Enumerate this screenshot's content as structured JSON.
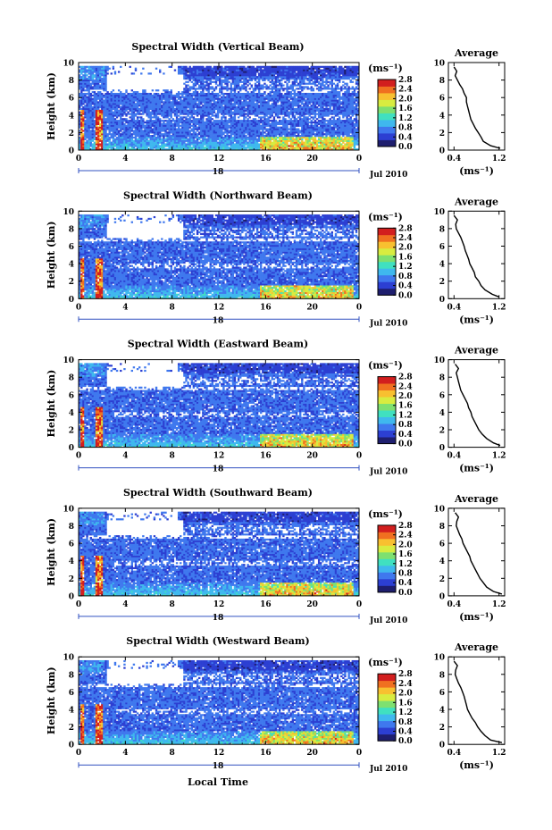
{
  "figure": {
    "xlabel": "Local Time",
    "date_label": "Jul 2010",
    "day_label": "18",
    "units_label": "(ms⁻¹)",
    "ylabel": "Height (km)",
    "avg_title": "Average",
    "avg_xlabel": "(ms⁻¹)"
  },
  "colors": {
    "scale": [
      "#1e1e6e",
      "#2c3fd2",
      "#3f78ee",
      "#3fb8ee",
      "#40e0c0",
      "#7ee070",
      "#d8ec40",
      "#f8c030",
      "#f07020",
      "#d21e1e"
    ]
  },
  "chart_data": [
    {
      "type": "heatmap",
      "title": "Spectral Width (Vertical Beam)",
      "x_ticks": [
        "0",
        "4",
        "8",
        "12",
        "16",
        "20",
        "0"
      ],
      "xlim": [
        0,
        24
      ],
      "ylim": [
        0,
        10
      ],
      "y_ticks": [
        "0",
        "2",
        "4",
        "6",
        "8",
        "10"
      ],
      "colorbar_ticks": [
        "2.8",
        "2.4",
        "2.0",
        "1.6",
        "1.2",
        "0.8",
        "0.4",
        "0.0"
      ],
      "colorbar_range": [
        0.0,
        2.8
      ],
      "average": {
        "x_ticks": [
          "0.4",
          "1.2"
        ],
        "xlim": [
          0.3,
          1.3
        ],
        "y_ticks": [
          "0",
          "2",
          "4",
          "6",
          "8",
          "10"
        ],
        "height": [
          0.2,
          0.5,
          1.0,
          1.5,
          2.0,
          2.5,
          3.0,
          3.5,
          4.0,
          4.5,
          5.0,
          5.5,
          6.0,
          6.5,
          7.0,
          7.5,
          8.0,
          8.5,
          9.0,
          9.5
        ],
        "width": [
          1.22,
          1.05,
          0.92,
          0.88,
          0.83,
          0.78,
          0.74,
          0.7,
          0.68,
          0.66,
          0.64,
          0.62,
          0.62,
          0.58,
          0.55,
          0.5,
          0.46,
          0.42,
          0.45,
          0.4
        ]
      }
    },
    {
      "type": "heatmap",
      "title": "Spectral Width (Northward Beam)",
      "x_ticks": [
        "0",
        "4",
        "8",
        "12",
        "16",
        "20",
        "0"
      ],
      "xlim": [
        0,
        24
      ],
      "ylim": [
        0,
        10
      ],
      "y_ticks": [
        "0",
        "2",
        "4",
        "6",
        "8",
        "10"
      ],
      "colorbar_ticks": [
        "2.8",
        "2.4",
        "2.0",
        "1.6",
        "1.2",
        "0.8",
        "0.4",
        "0.0"
      ],
      "colorbar_range": [
        0.0,
        2.8
      ],
      "average": {
        "x_ticks": [
          "0.4",
          "1.2"
        ],
        "xlim": [
          0.3,
          1.3
        ],
        "y_ticks": [
          "0",
          "2",
          "4",
          "6",
          "8",
          "10"
        ],
        "height": [
          0.2,
          0.5,
          1.0,
          1.5,
          2.0,
          2.5,
          3.0,
          3.5,
          4.0,
          4.5,
          5.0,
          5.5,
          6.0,
          6.5,
          7.0,
          7.5,
          8.0,
          8.5,
          9.0,
          9.5
        ],
        "width": [
          1.2,
          1.08,
          0.95,
          0.88,
          0.84,
          0.78,
          0.76,
          0.72,
          0.68,
          0.66,
          0.63,
          0.6,
          0.58,
          0.55,
          0.52,
          0.48,
          0.44,
          0.43,
          0.46,
          0.4
        ]
      }
    },
    {
      "type": "heatmap",
      "title": "Spectral Width (Eastward Beam)",
      "x_ticks": [
        "0",
        "4",
        "8",
        "12",
        "16",
        "20",
        "0"
      ],
      "xlim": [
        0,
        24
      ],
      "ylim": [
        0,
        10
      ],
      "y_ticks": [
        "0",
        "2",
        "4",
        "6",
        "8",
        "10"
      ],
      "colorbar_ticks": [
        "2.8",
        "2.4",
        "2.0",
        "1.6",
        "1.2",
        "0.8",
        "0.4",
        "0.0"
      ],
      "colorbar_range": [
        0.0,
        2.8
      ],
      "average": {
        "x_ticks": [
          "0.4",
          "1.2"
        ],
        "xlim": [
          0.3,
          1.3
        ],
        "y_ticks": [
          "0",
          "2",
          "4",
          "6",
          "8",
          "10"
        ],
        "height": [
          0.2,
          0.5,
          1.0,
          1.5,
          2.0,
          2.5,
          3.0,
          3.5,
          4.0,
          4.5,
          5.0,
          5.5,
          6.0,
          6.5,
          7.0,
          7.5,
          8.0,
          8.5,
          9.0,
          9.5
        ],
        "width": [
          1.22,
          1.1,
          0.98,
          0.9,
          0.84,
          0.8,
          0.76,
          0.72,
          0.7,
          0.66,
          0.64,
          0.6,
          0.56,
          0.52,
          0.5,
          0.48,
          0.46,
          0.44,
          0.48,
          0.42
        ]
      }
    },
    {
      "type": "heatmap",
      "title": "Spectral Width (Southward Beam)",
      "x_ticks": [
        "0",
        "4",
        "8",
        "12",
        "16",
        "20",
        "0"
      ],
      "xlim": [
        0,
        24
      ],
      "ylim": [
        0,
        10
      ],
      "y_ticks": [
        "0",
        "2",
        "4",
        "6",
        "8",
        "10"
      ],
      "colorbar_ticks": [
        "2.8",
        "2.4",
        "2.0",
        "1.6",
        "1.2",
        "0.8",
        "0.4",
        "0.0"
      ],
      "colorbar_range": [
        0.0,
        2.8
      ],
      "average": {
        "x_ticks": [
          "0.4",
          "1.2"
        ],
        "xlim": [
          0.3,
          1.3
        ],
        "y_ticks": [
          "0",
          "2",
          "4",
          "6",
          "8",
          "10"
        ],
        "height": [
          0.2,
          0.5,
          1.0,
          1.5,
          2.0,
          2.5,
          3.0,
          3.5,
          4.0,
          4.5,
          5.0,
          5.5,
          6.0,
          6.5,
          7.0,
          7.5,
          8.0,
          8.5,
          9.0,
          9.5
        ],
        "width": [
          1.25,
          1.1,
          0.98,
          0.92,
          0.86,
          0.82,
          0.78,
          0.74,
          0.7,
          0.68,
          0.64,
          0.6,
          0.56,
          0.54,
          0.5,
          0.47,
          0.44,
          0.45,
          0.48,
          0.42
        ]
      }
    },
    {
      "type": "heatmap",
      "title": "Spectral Width (Westward Beam)",
      "x_ticks": [
        "0",
        "4",
        "8",
        "12",
        "16",
        "20",
        "0"
      ],
      "xlim": [
        0,
        24
      ],
      "ylim": [
        0,
        10
      ],
      "y_ticks": [
        "0",
        "2",
        "4",
        "6",
        "8",
        "10"
      ],
      "colorbar_ticks": [
        "2.8",
        "2.4",
        "2.0",
        "1.6",
        "1.2",
        "0.8",
        "0.4",
        "0.0"
      ],
      "colorbar_range": [
        0.0,
        2.8
      ],
      "average": {
        "x_ticks": [
          "0.4",
          "1.2"
        ],
        "xlim": [
          0.3,
          1.3
        ],
        "y_ticks": [
          "0",
          "2",
          "4",
          "6",
          "8",
          "10"
        ],
        "height": [
          0.2,
          0.5,
          1.0,
          1.5,
          2.0,
          2.5,
          3.0,
          3.5,
          4.0,
          4.5,
          5.0,
          5.5,
          6.0,
          6.5,
          7.0,
          7.5,
          8.0,
          8.5,
          9.0,
          9.5
        ],
        "width": [
          1.25,
          1.05,
          0.95,
          0.88,
          0.82,
          0.78,
          0.72,
          0.68,
          0.64,
          0.62,
          0.6,
          0.58,
          0.55,
          0.52,
          0.48,
          0.45,
          0.42,
          0.43,
          0.46,
          0.4
        ]
      }
    }
  ]
}
